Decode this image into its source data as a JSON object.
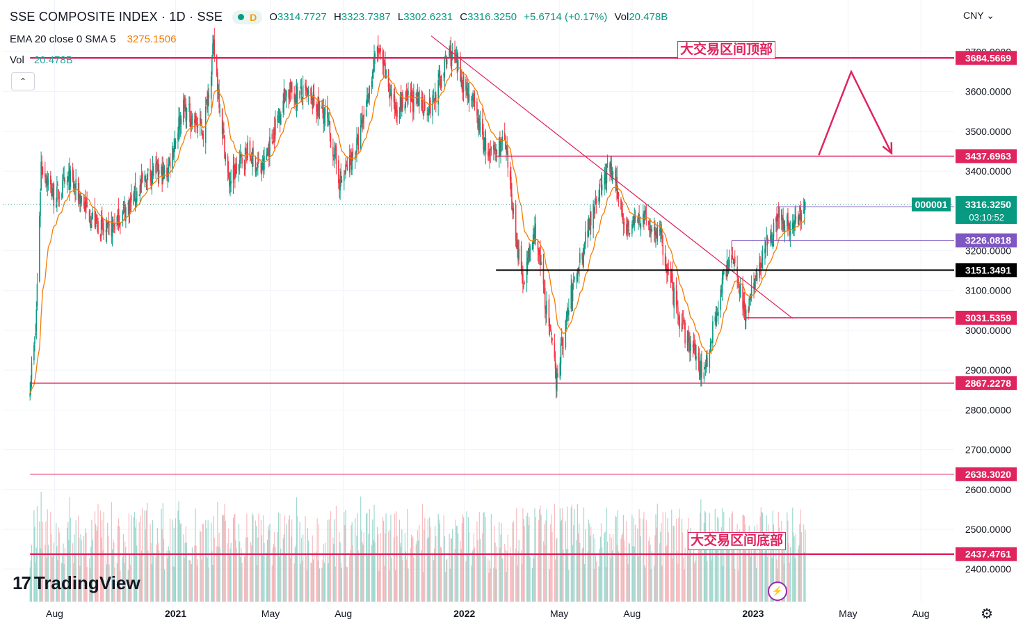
{
  "header": {
    "symbol_title": "SSE COMPOSITE INDEX · 1D · SSE",
    "interval_badge": "D",
    "ohlc": {
      "o_label": "O",
      "o_value": "3314.7727",
      "h_label": "H",
      "h_value": "3323.7387",
      "l_label": "L",
      "l_value": "3302.6231",
      "c_label": "C",
      "c_value": "3316.3250",
      "change": "+5.6714 (+0.17%)",
      "vol_label": "Vol",
      "vol_value": "20.478B"
    },
    "indicator_label": "EMA 20 close 0 SMA 5",
    "indicator_value": "3275.1506",
    "volume_label": "Vol",
    "volume_value": "20.478B",
    "currency": "CNY"
  },
  "annotations": {
    "top_label": "大交易区间顶部",
    "bottom_label": "大交易区间底部"
  },
  "branding": {
    "logo_text": "TradingView"
  },
  "colors": {
    "up": "#089981",
    "down": "#f23645",
    "ema": "#f57c00",
    "resistance": "#e0245e",
    "purple": "#7e57c2",
    "black": "#000000"
  },
  "icons": {
    "collapse": "chevron-up-icon",
    "settings": "gear-icon",
    "alert": "lightning-icon"
  },
  "chart_data": {
    "type": "candlestick",
    "title": "SSE COMPOSITE INDEX",
    "ylim": [
      2340,
      3770
    ],
    "y_ticks": [
      "2400.0000",
      "2500.0000",
      "2600.0000",
      "2700.0000",
      "2800.0000",
      "2900.0000",
      "3000.0000",
      "3100.0000",
      "3200.0000",
      "3400.0000",
      "3500.0000",
      "3600.0000",
      "3700.0000"
    ],
    "x_ticks": [
      "Aug",
      "2021",
      "May",
      "Aug",
      "2022",
      "May",
      "Aug",
      "2023",
      "May",
      "Aug"
    ],
    "price_path": [
      {
        "d": "2020-07-01",
        "p": 2870
      },
      {
        "d": "2020-07-08",
        "p": 2990
      },
      {
        "d": "2020-07-15",
        "p": 3420
      },
      {
        "d": "2020-08-01",
        "p": 3330
      },
      {
        "d": "2020-08-20",
        "p": 3380
      },
      {
        "d": "2020-09-15",
        "p": 3290
      },
      {
        "d": "2020-10-05",
        "p": 3240
      },
      {
        "d": "2020-11-01",
        "p": 3310
      },
      {
        "d": "2020-12-01",
        "p": 3400
      },
      {
        "d": "2020-12-20",
        "p": 3390
      },
      {
        "d": "2021-01-10",
        "p": 3560
      },
      {
        "d": "2021-02-05",
        "p": 3500
      },
      {
        "d": "2021-02-18",
        "p": 3710
      },
      {
        "d": "2021-03-09",
        "p": 3370
      },
      {
        "d": "2021-04-01",
        "p": 3450
      },
      {
        "d": "2021-04-20",
        "p": 3400
      },
      {
        "d": "2021-05-20",
        "p": 3600
      },
      {
        "d": "2021-06-15",
        "p": 3590
      },
      {
        "d": "2021-07-10",
        "p": 3540
      },
      {
        "d": "2021-07-28",
        "p": 3370
      },
      {
        "d": "2021-08-20",
        "p": 3470
      },
      {
        "d": "2021-09-13",
        "p": 3710
      },
      {
        "d": "2021-10-05",
        "p": 3560
      },
      {
        "d": "2021-10-25",
        "p": 3580
      },
      {
        "d": "2021-11-20",
        "p": 3560
      },
      {
        "d": "2021-12-13",
        "p": 3700
      },
      {
        "d": "2022-01-10",
        "p": 3580
      },
      {
        "d": "2022-02-01",
        "p": 3430
      },
      {
        "d": "2022-02-20",
        "p": 3480
      },
      {
        "d": "2022-03-15",
        "p": 3120
      },
      {
        "d": "2022-04-01",
        "p": 3250
      },
      {
        "d": "2022-04-27",
        "p": 2880
      },
      {
        "d": "2022-05-15",
        "p": 3080
      },
      {
        "d": "2022-06-15",
        "p": 3330
      },
      {
        "d": "2022-07-04",
        "p": 3410
      },
      {
        "d": "2022-07-25",
        "p": 3260
      },
      {
        "d": "2022-08-15",
        "p": 3280
      },
      {
        "d": "2022-09-05",
        "p": 3240
      },
      {
        "d": "2022-09-30",
        "p": 3020
      },
      {
        "d": "2022-10-31",
        "p": 2890
      },
      {
        "d": "2022-11-20",
        "p": 3090
      },
      {
        "d": "2022-12-05",
        "p": 3200
      },
      {
        "d": "2022-12-23",
        "p": 3040
      },
      {
        "d": "2023-01-10",
        "p": 3170
      },
      {
        "d": "2023-02-01",
        "p": 3290
      },
      {
        "d": "2023-02-20",
        "p": 3260
      },
      {
        "d": "2023-03-08",
        "p": 3316
      }
    ],
    "horizontal_levels": [
      {
        "value": 3684.5669,
        "label": "3684.5669",
        "color": "#e0245e",
        "start": "2020-07-01",
        "width": 2.5
      },
      {
        "value": 3437.6963,
        "label": "3437.6963",
        "color": "#e0245e",
        "start": "2022-02-10",
        "width": 1.5
      },
      {
        "value": 3151.3491,
        "label": "3151.3491",
        "color": "#000000",
        "start": "2022-02-10",
        "width": 2
      },
      {
        "value": 3031.5359,
        "label": "3031.5359",
        "color": "#e0245e",
        "start": "2022-12-23",
        "width": 1.5
      },
      {
        "value": 2867.2278,
        "label": "2867.2278",
        "color": "#e0245e",
        "start": "2020-07-01",
        "width": 1.5
      },
      {
        "value": 2638.302,
        "label": "2638.3020",
        "color": "#e0245e",
        "start": "2020-07-01",
        "width": 1
      },
      {
        "value": 2437.4761,
        "label": "2437.4761",
        "color": "#e0245e",
        "start": "2020-07-01",
        "width": 2.5
      }
    ],
    "purple_levels": [
      {
        "value": 3310.4902,
        "label": "3310.4902",
        "start": "2023-01-31"
      },
      {
        "value": 3226.0818,
        "label": "3226.0818",
        "start": "2022-12-05"
      }
    ],
    "last_price": {
      "value": 3316.325,
      "label": "3316.3250",
      "countdown": "03:10:52",
      "symbol_tag": "000001"
    },
    "trendline": {
      "from": {
        "d": "2021-11-20",
        "p": 3740
      },
      "to": {
        "d": "2023-02-20",
        "p": 3030
      }
    },
    "projection": [
      {
        "d": "2023-03-25",
        "p": 3440
      },
      {
        "d": "2023-05-05",
        "p": 3650
      },
      {
        "d": "2023-06-25",
        "p": 3445
      }
    ]
  }
}
